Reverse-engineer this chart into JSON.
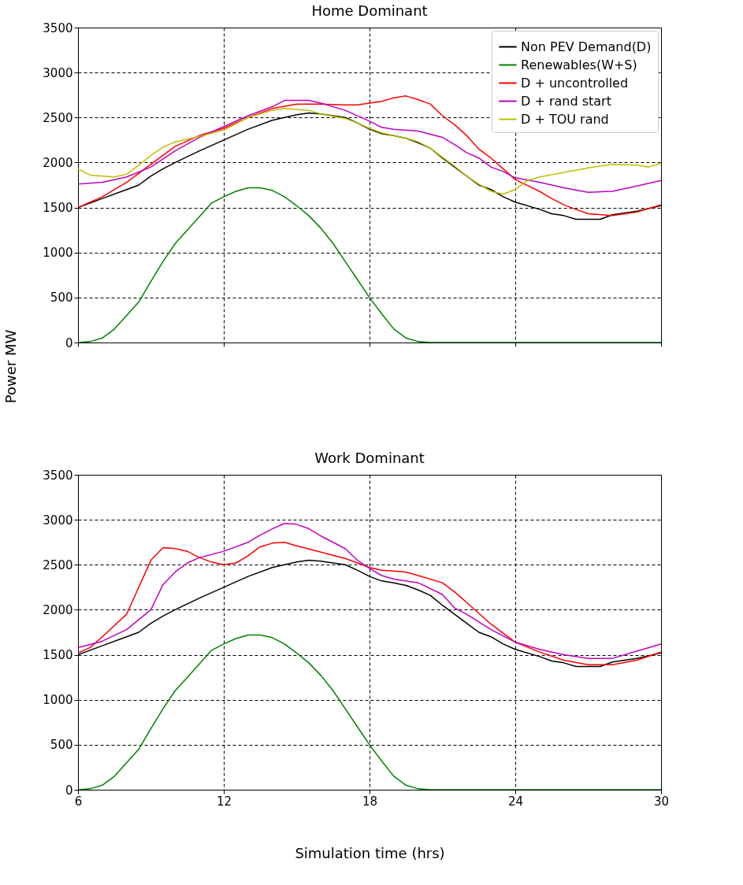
{
  "chart_data": [
    {
      "type": "line",
      "title": "Home Dominant",
      "ylabel": "Power MW",
      "xlim": [
        6,
        30
      ],
      "xticks": [
        6,
        12,
        18,
        24,
        30
      ],
      "ylim": [
        0,
        3500
      ],
      "yticks": [
        0,
        500,
        1000,
        1500,
        2000,
        2500,
        3000,
        3500
      ],
      "grid": true,
      "legend": "top right",
      "line_style": "solid",
      "tick_labels": "y",
      "series": [
        {
          "name": "Non PEV Demand(D)",
          "color": "#000000",
          "x": [
            6,
            7,
            8,
            8.5,
            9,
            9.5,
            10,
            11,
            12,
            13,
            14,
            15,
            15.5,
            16,
            17,
            17.5,
            18,
            18.5,
            19,
            19.5,
            20,
            20.5,
            21,
            21.5,
            22,
            22.5,
            23,
            23.5,
            24,
            25,
            25.5,
            26,
            26.5,
            27,
            27.5,
            28,
            29,
            30
          ],
          "values": [
            1500,
            1600,
            1700,
            1750,
            1850,
            1930,
            2000,
            2130,
            2250,
            2370,
            2470,
            2530,
            2550,
            2540,
            2500,
            2440,
            2370,
            2320,
            2300,
            2270,
            2220,
            2160,
            2050,
            1950,
            1850,
            1750,
            1700,
            1620,
            1560,
            1480,
            1430,
            1410,
            1370,
            1370,
            1370,
            1420,
            1460,
            1520
          ]
        },
        {
          "name": "Renewables(W+S)",
          "color": "#008000",
          "x": [
            6,
            6.5,
            7,
            7.5,
            8,
            8.5,
            9,
            9.5,
            10,
            10.5,
            11,
            11.5,
            12,
            12.5,
            13,
            13.5,
            14,
            14.5,
            15,
            15.5,
            16,
            16.5,
            17,
            17.5,
            18,
            18.5,
            19,
            19.5,
            20,
            20.5,
            25,
            30
          ],
          "values": [
            0,
            10,
            50,
            150,
            300,
            450,
            680,
            900,
            1100,
            1250,
            1400,
            1550,
            1620,
            1680,
            1720,
            1720,
            1690,
            1620,
            1520,
            1410,
            1270,
            1100,
            900,
            700,
            500,
            320,
            150,
            50,
            10,
            0,
            0,
            0
          ]
        },
        {
          "name": "D + uncontrolled",
          "color": "#ff0000",
          "x": [
            6,
            7,
            8,
            9,
            10,
            11,
            12,
            13,
            14,
            15,
            16,
            17,
            17.5,
            18,
            18.5,
            19,
            19.5,
            20,
            20.5,
            21,
            21.5,
            22,
            22.5,
            23,
            23.5,
            24,
            25,
            25.5,
            26,
            26.5,
            27,
            28,
            29,
            30
          ],
          "values": [
            1500,
            1620,
            1780,
            1980,
            2180,
            2300,
            2380,
            2500,
            2600,
            2650,
            2650,
            2640,
            2640,
            2660,
            2680,
            2720,
            2740,
            2700,
            2650,
            2520,
            2420,
            2300,
            2150,
            2050,
            1930,
            1810,
            1680,
            1600,
            1530,
            1480,
            1430,
            1410,
            1450,
            1530
          ]
        },
        {
          "name": "D + rand start",
          "color": "#bf00bf",
          "x": [
            6,
            7,
            8,
            9,
            10,
            11,
            12,
            13,
            14,
            14.5,
            15.5,
            16,
            17,
            18,
            18.5,
            19,
            20,
            21,
            21.5,
            22,
            22.5,
            23,
            23.5,
            24,
            25,
            26,
            27,
            28,
            29,
            30
          ],
          "values": [
            1760,
            1780,
            1840,
            1950,
            2130,
            2280,
            2400,
            2520,
            2620,
            2690,
            2690,
            2660,
            2580,
            2460,
            2390,
            2370,
            2350,
            2280,
            2200,
            2110,
            2050,
            1950,
            1900,
            1830,
            1780,
            1720,
            1670,
            1680,
            1740,
            1800
          ]
        },
        {
          "name": "D + TOU rand",
          "color": "#bfbf00",
          "x": [
            6,
            6.5,
            7.5,
            8,
            8.5,
            9,
            9.5,
            10,
            11,
            12,
            13,
            14,
            14.5,
            15.5,
            16,
            17,
            17.5,
            18,
            18.5,
            19.5,
            20,
            20.5,
            21,
            21.5,
            22,
            22.5,
            23,
            23.5,
            24,
            24.5,
            25,
            26,
            27,
            28,
            29,
            29.5,
            30
          ],
          "values": [
            1930,
            1860,
            1840,
            1870,
            1970,
            2080,
            2170,
            2230,
            2290,
            2360,
            2500,
            2580,
            2600,
            2580,
            2540,
            2490,
            2440,
            2380,
            2330,
            2270,
            2230,
            2160,
            2060,
            1960,
            1850,
            1760,
            1680,
            1650,
            1700,
            1800,
            1840,
            1890,
            1940,
            1980,
            1970,
            1950,
            1990
          ]
        }
      ]
    },
    {
      "type": "line",
      "title": "Work Dominant",
      "xlabel": "Simulation time (hrs)",
      "xlim": [
        6,
        30
      ],
      "xticks": [
        6,
        12,
        18,
        24,
        30
      ],
      "ylim": [
        0,
        3500
      ],
      "yticks": [
        0,
        500,
        1000,
        1500,
        2000,
        2500,
        3000,
        3500
      ],
      "grid": true,
      "legend": "top right",
      "line_style": "solid",
      "series": [
        {
          "name": "Non PEV Demand(D)",
          "color": "#000000",
          "x": [
            6,
            7,
            8,
            8.5,
            9,
            9.5,
            10,
            11,
            12,
            13,
            14,
            15,
            15.5,
            16,
            17,
            17.5,
            18,
            18.5,
            19,
            19.5,
            20,
            20.5,
            21,
            21.5,
            22,
            22.5,
            23,
            23.5,
            24,
            25,
            25.5,
            26,
            26.5,
            27,
            27.5,
            28,
            29,
            30
          ],
          "values": [
            1500,
            1600,
            1700,
            1750,
            1850,
            1930,
            2000,
            2130,
            2250,
            2370,
            2470,
            2530,
            2550,
            2540,
            2500,
            2440,
            2370,
            2320,
            2300,
            2270,
            2220,
            2160,
            2050,
            1950,
            1850,
            1750,
            1700,
            1620,
            1560,
            1480,
            1430,
            1410,
            1370,
            1370,
            1370,
            1420,
            1460,
            1520
          ]
        },
        {
          "name": "Renewables(W+S)",
          "color": "#008000",
          "x": [
            6,
            6.5,
            7,
            7.5,
            8,
            8.5,
            9,
            9.5,
            10,
            10.5,
            11,
            11.5,
            12,
            12.5,
            13,
            13.5,
            14,
            14.5,
            15,
            15.5,
            16,
            16.5,
            17,
            17.5,
            18,
            18.5,
            19,
            19.5,
            20,
            20.5,
            25,
            30
          ],
          "values": [
            0,
            10,
            50,
            150,
            300,
            450,
            680,
            900,
            1100,
            1250,
            1400,
            1550,
            1620,
            1680,
            1720,
            1720,
            1690,
            1620,
            1520,
            1410,
            1270,
            1100,
            900,
            700,
            500,
            320,
            150,
            50,
            10,
            0,
            0,
            0
          ]
        },
        {
          "name": "D + uncontrolled",
          "color": "#ff0000",
          "x": [
            6,
            6.5,
            7,
            8,
            8.5,
            9,
            9.5,
            10,
            10.5,
            11,
            11.5,
            12,
            12.5,
            13,
            13.5,
            14,
            14.5,
            15,
            16,
            17,
            17.5,
            18,
            18.5,
            19.5,
            20,
            21,
            21.5,
            22,
            23,
            24,
            25,
            26,
            27,
            28,
            29,
            30
          ],
          "values": [
            1520,
            1580,
            1700,
            1950,
            2250,
            2550,
            2690,
            2680,
            2650,
            2580,
            2530,
            2500,
            2520,
            2600,
            2700,
            2740,
            2750,
            2710,
            2640,
            2570,
            2520,
            2470,
            2440,
            2420,
            2380,
            2300,
            2200,
            2080,
            1840,
            1640,
            1530,
            1440,
            1390,
            1390,
            1440,
            1530
          ]
        },
        {
          "name": "D + rand start",
          "color": "#bf00bf",
          "x": [
            6,
            7,
            8,
            9,
            9.5,
            10,
            10.5,
            11,
            12,
            13,
            13.5,
            14,
            14.5,
            15,
            15.5,
            16,
            17,
            17.5,
            18,
            18.5,
            19,
            20,
            21,
            21.5,
            22,
            23,
            24,
            25,
            26,
            27,
            28,
            29,
            30
          ],
          "values": [
            1580,
            1650,
            1780,
            2000,
            2280,
            2420,
            2520,
            2580,
            2650,
            2750,
            2830,
            2900,
            2960,
            2950,
            2900,
            2820,
            2680,
            2550,
            2460,
            2380,
            2340,
            2300,
            2170,
            2020,
            1950,
            1780,
            1640,
            1560,
            1500,
            1460,
            1460,
            1540,
            1620
          ]
        }
      ]
    }
  ]
}
